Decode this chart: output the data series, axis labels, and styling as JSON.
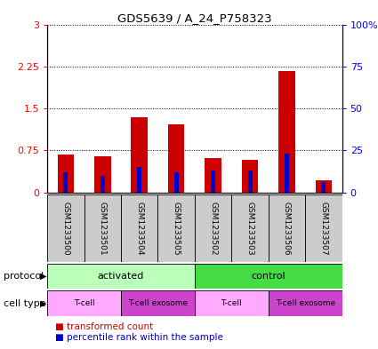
{
  "title": "GDS5639 / A_24_P758323",
  "samples": [
    "GSM1233500",
    "GSM1233501",
    "GSM1233504",
    "GSM1233505",
    "GSM1233502",
    "GSM1233503",
    "GSM1233506",
    "GSM1233507"
  ],
  "transformed_count": [
    0.68,
    0.65,
    1.35,
    1.22,
    0.62,
    0.58,
    2.17,
    0.22
  ],
  "percentile_rank_pct": [
    12,
    10,
    15,
    12,
    13,
    13,
    23,
    6
  ],
  "ylim_left": [
    0,
    3
  ],
  "ylim_right": [
    0,
    100
  ],
  "yticks_left": [
    0,
    0.75,
    1.5,
    2.25,
    3
  ],
  "ytick_labels_left": [
    "0",
    "0.75",
    "1.5",
    "2.25",
    "3"
  ],
  "yticks_right": [
    0,
    25,
    50,
    75,
    100
  ],
  "ytick_labels_right": [
    "0",
    "25",
    "50",
    "75",
    "100%"
  ],
  "bar_color_red": "#cc0000",
  "bar_color_blue": "#0000cc",
  "red_bar_width": 0.45,
  "blue_bar_width": 0.12,
  "protocol_color_light": "#bbffbb",
  "protocol_color_dark": "#44dd44",
  "cell_type_color_light": "#ffaaff",
  "cell_type_color_dark": "#cc44cc",
  "background_color": "#ffffff",
  "sample_area_bg": "#cccccc",
  "legend_red_label": "transformed count",
  "legend_blue_label": "percentile rank within the sample",
  "plot_bg": "#ffffff"
}
